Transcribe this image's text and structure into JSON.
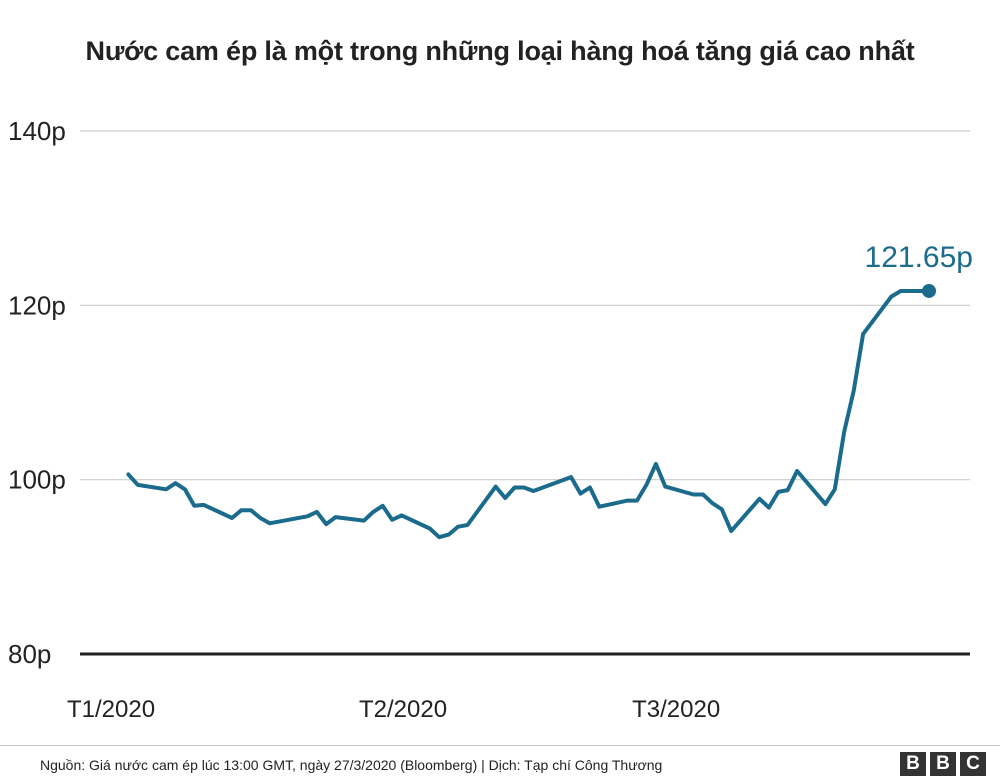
{
  "chart_data": {
    "type": "line",
    "title": "Nước cam ép là một trong những loại hàng hoá tăng giá cao nhất",
    "xlabel": "",
    "ylabel": "",
    "ylim": [
      80,
      140
    ],
    "yticks": [
      80,
      100,
      120,
      140
    ],
    "ytick_labels": [
      "80p",
      "100p",
      "120p",
      "140p"
    ],
    "xlim": [
      "2020-01-01",
      "2020-03-27"
    ],
    "xticks": [
      "2020-01-01",
      "2020-02-01",
      "2020-03-01"
    ],
    "xtick_labels": [
      "T1/2020",
      "T2/2020",
      "T3/2020"
    ],
    "grid": true,
    "line_color": "#1b6b8c",
    "series": [
      {
        "x": [
          "2020-01-02",
          "2020-01-03",
          "2020-01-06",
          "2020-01-07",
          "2020-01-08",
          "2020-01-09",
          "2020-01-10",
          "2020-01-13",
          "2020-01-14",
          "2020-01-15",
          "2020-01-16",
          "2020-01-17",
          "2020-01-21",
          "2020-01-22",
          "2020-01-23",
          "2020-01-24",
          "2020-01-27",
          "2020-01-28",
          "2020-01-29",
          "2020-01-30",
          "2020-01-31",
          "2020-02-03",
          "2020-02-04",
          "2020-02-05",
          "2020-02-06",
          "2020-02-07",
          "2020-02-10",
          "2020-02-11",
          "2020-02-12",
          "2020-02-13",
          "2020-02-14",
          "2020-02-18",
          "2020-02-19",
          "2020-02-20",
          "2020-02-21",
          "2020-02-24",
          "2020-02-25",
          "2020-02-26",
          "2020-02-27",
          "2020-02-28",
          "2020-03-02",
          "2020-03-03",
          "2020-03-04",
          "2020-03-05",
          "2020-03-06",
          "2020-03-09",
          "2020-03-10",
          "2020-03-11",
          "2020-03-12",
          "2020-03-13",
          "2020-03-16",
          "2020-03-17",
          "2020-03-18",
          "2020-03-19",
          "2020-03-20",
          "2020-03-23",
          "2020-03-24",
          "2020-03-25",
          "2020-03-26",
          "2020-03-27"
        ],
        "values": [
          100.6,
          99.4,
          98.9,
          99.6,
          98.9,
          97.0,
          97.1,
          95.6,
          96.5,
          96.5,
          95.6,
          95.0,
          95.8,
          96.3,
          94.9,
          95.7,
          95.3,
          96.3,
          97.0,
          95.4,
          95.9,
          94.4,
          93.4,
          93.7,
          94.6,
          94.8,
          99.2,
          97.9,
          99.1,
          99.1,
          98.7,
          100.3,
          98.4,
          99.1,
          96.9,
          97.6,
          97.6,
          99.4,
          101.8,
          99.2,
          98.3,
          98.3,
          97.3,
          96.6,
          94.1,
          97.8,
          96.8,
          98.6,
          98.8,
          101.0,
          97.2,
          98.9,
          105.5,
          110.2,
          116.7,
          121.0,
          121.65,
          121.65,
          121.65,
          121.65
        ],
        "end_label": "121.65p"
      }
    ]
  },
  "footer": {
    "source": "Nguồn: Giá nước cam ép lúc 13:00 GMT, ngày 27/3/2020 (Bloomberg) | Dịch: Tạp chí Công Thương",
    "logo": [
      "B",
      "B",
      "C"
    ]
  }
}
